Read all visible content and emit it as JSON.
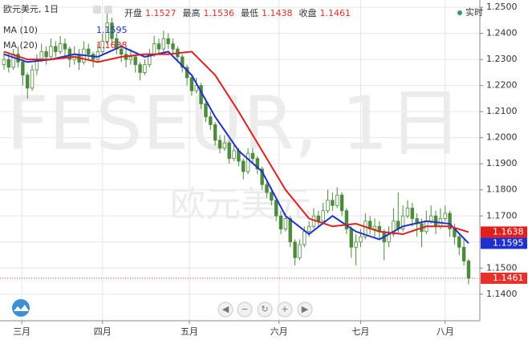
{
  "chart_data": {
    "type": "candlestick",
    "title": "欧元美元, 1日",
    "watermark": "FESEUR, 1日",
    "watermark_sub": "欧元美元",
    "realtime_label": "实时",
    "ohlc_labels": [
      "开盘",
      "最高",
      "最低",
      "收盘"
    ],
    "color": "#4b8b3b",
    "xlim": [
      -0.85,
      101.4
    ],
    "xticks": [
      {
        "value": 3.8,
        "label": "三月"
      },
      {
        "value": 21,
        "label": "四月"
      },
      {
        "value": 39.5,
        "label": "五月"
      },
      {
        "value": 58.6,
        "label": "六月"
      },
      {
        "value": 76,
        "label": "七月"
      },
      {
        "value": 94,
        "label": "八月"
      }
    ],
    "ylim": [
      1.1298,
      1.2528
    ],
    "yticks": [
      {
        "value": 1.14,
        "label": "1.1400"
      },
      {
        "value": 1.15,
        "label": "1.1500"
      },
      {
        "value": 1.16,
        "label": "1.1600"
      },
      {
        "value": 1.17,
        "label": "1.1700"
      },
      {
        "value": 1.18,
        "label": "1.1800"
      },
      {
        "value": 1.19,
        "label": "1.1900"
      },
      {
        "value": 1.2,
        "label": "1.2000"
      },
      {
        "value": 1.21,
        "label": "1.2100"
      },
      {
        "value": 1.22,
        "label": "1.2200"
      },
      {
        "value": 1.23,
        "label": "1.2300"
      },
      {
        "value": 1.24,
        "label": "1.2400"
      },
      {
        "value": 1.25,
        "label": "1.2500"
      }
    ],
    "grid": true,
    "candles": [
      [
        1.228,
        1.233,
        1.226,
        1.23
      ],
      [
        1.23,
        1.232,
        1.225,
        1.227
      ],
      [
        1.227,
        1.234,
        1.226,
        1.232
      ],
      [
        1.232,
        1.235,
        1.227,
        1.229
      ],
      [
        1.229,
        1.23,
        1.22,
        1.224
      ],
      [
        1.224,
        1.225,
        1.215,
        1.219
      ],
      [
        1.219,
        1.228,
        1.218,
        1.226
      ],
      [
        1.226,
        1.232,
        1.224,
        1.23
      ],
      [
        1.23,
        1.236,
        1.229,
        1.233
      ],
      [
        1.233,
        1.235,
        1.228,
        1.231
      ],
      [
        1.231,
        1.238,
        1.23,
        1.235
      ],
      [
        1.235,
        1.237,
        1.231,
        1.233
      ],
      [
        1.233,
        1.239,
        1.232,
        1.236
      ],
      [
        1.236,
        1.238,
        1.231,
        1.234
      ],
      [
        1.234,
        1.235,
        1.227,
        1.23
      ],
      [
        1.23,
        1.235,
        1.228,
        1.232
      ],
      [
        1.232,
        1.234,
        1.226,
        1.229
      ],
      [
        1.229,
        1.237,
        1.228,
        1.234
      ],
      [
        1.234,
        1.236,
        1.23,
        1.232
      ],
      [
        1.232,
        1.233,
        1.227,
        1.23
      ],
      [
        1.23,
        1.236,
        1.229,
        1.233
      ],
      [
        1.233,
        1.24,
        1.232,
        1.237
      ],
      [
        1.237,
        1.248,
        1.236,
        1.244
      ],
      [
        1.244,
        1.246,
        1.236,
        1.238
      ],
      [
        1.238,
        1.24,
        1.232,
        1.234
      ],
      [
        1.234,
        1.236,
        1.229,
        1.232
      ],
      [
        1.232,
        1.234,
        1.227,
        1.23
      ],
      [
        1.23,
        1.234,
        1.228,
        1.231
      ],
      [
        1.231,
        1.232,
        1.225,
        1.228
      ],
      [
        1.228,
        1.229,
        1.222,
        1.225
      ],
      [
        1.225,
        1.23,
        1.224,
        1.228
      ],
      [
        1.228,
        1.234,
        1.227,
        1.232
      ],
      [
        1.232,
        1.239,
        1.231,
        1.236
      ],
      [
        1.236,
        1.238,
        1.232,
        1.234
      ],
      [
        1.234,
        1.241,
        1.233,
        1.238
      ],
      [
        1.238,
        1.24,
        1.234,
        1.236
      ],
      [
        1.236,
        1.238,
        1.232,
        1.234
      ],
      [
        1.234,
        1.235,
        1.229,
        1.231
      ],
      [
        1.231,
        1.232,
        1.225,
        1.227
      ],
      [
        1.227,
        1.228,
        1.22,
        1.223
      ],
      [
        1.223,
        1.224,
        1.216,
        1.218
      ],
      [
        1.218,
        1.223,
        1.217,
        1.22
      ],
      [
        1.22,
        1.221,
        1.211,
        1.213
      ],
      [
        1.213,
        1.215,
        1.206,
        1.208
      ],
      [
        1.208,
        1.21,
        1.203,
        1.205
      ],
      [
        1.205,
        1.206,
        1.197,
        1.199
      ],
      [
        1.199,
        1.201,
        1.194,
        1.196
      ],
      [
        1.196,
        1.201,
        1.195,
        1.198
      ],
      [
        1.198,
        1.199,
        1.19,
        1.192
      ],
      [
        1.192,
        1.197,
        1.191,
        1.195
      ],
      [
        1.195,
        1.196,
        1.189,
        1.191
      ],
      [
        1.191,
        1.192,
        1.184,
        1.187
      ],
      [
        1.187,
        1.196,
        1.186,
        1.194
      ],
      [
        1.194,
        1.196,
        1.19,
        1.192
      ],
      [
        1.192,
        1.193,
        1.186,
        1.188
      ],
      [
        1.188,
        1.189,
        1.18,
        1.182
      ],
      [
        1.182,
        1.184,
        1.177,
        1.179
      ],
      [
        1.179,
        1.181,
        1.174,
        1.176
      ],
      [
        1.176,
        1.177,
        1.168,
        1.17
      ],
      [
        1.17,
        1.172,
        1.163,
        1.165
      ],
      [
        1.165,
        1.171,
        1.164,
        1.169
      ],
      [
        1.169,
        1.17,
        1.158,
        1.16
      ],
      [
        1.16,
        1.161,
        1.151,
        1.154
      ],
      [
        1.154,
        1.161,
        1.153,
        1.159
      ],
      [
        1.159,
        1.166,
        1.158,
        1.164
      ],
      [
        1.164,
        1.168,
        1.162,
        1.166
      ],
      [
        1.166,
        1.173,
        1.165,
        1.17
      ],
      [
        1.17,
        1.172,
        1.166,
        1.168
      ],
      [
        1.168,
        1.175,
        1.167,
        1.172
      ],
      [
        1.172,
        1.18,
        1.171,
        1.176
      ],
      [
        1.176,
        1.179,
        1.172,
        1.174
      ],
      [
        1.174,
        1.181,
        1.173,
        1.178
      ],
      [
        1.178,
        1.179,
        1.17,
        1.172
      ],
      [
        1.172,
        1.173,
        1.163,
        1.165
      ],
      [
        1.165,
        1.166,
        1.154,
        1.158
      ],
      [
        1.158,
        1.163,
        1.151,
        1.16
      ],
      [
        1.16,
        1.165,
        1.158,
        1.162
      ],
      [
        1.162,
        1.171,
        1.161,
        1.168
      ],
      [
        1.168,
        1.17,
        1.163,
        1.165
      ],
      [
        1.165,
        1.169,
        1.162,
        1.166
      ],
      [
        1.166,
        1.168,
        1.161,
        1.164
      ],
      [
        1.164,
        1.165,
        1.153,
        1.16
      ],
      [
        1.16,
        1.166,
        1.158,
        1.163
      ],
      [
        1.163,
        1.173,
        1.162,
        1.168
      ],
      [
        1.168,
        1.179,
        1.163,
        1.165
      ],
      [
        1.165,
        1.174,
        1.164,
        1.17
      ],
      [
        1.17,
        1.176,
        1.169,
        1.173
      ],
      [
        1.173,
        1.175,
        1.166,
        1.169
      ],
      [
        1.169,
        1.171,
        1.162,
        1.167
      ],
      [
        1.167,
        1.169,
        1.158,
        1.164
      ],
      [
        1.164,
        1.172,
        1.163,
        1.168
      ],
      [
        1.168,
        1.174,
        1.167,
        1.17
      ],
      [
        1.17,
        1.172,
        1.163,
        1.166
      ],
      [
        1.166,
        1.173,
        1.165,
        1.169
      ],
      [
        1.169,
        1.174,
        1.168,
        1.171
      ],
      [
        1.171,
        1.172,
        1.162,
        1.165
      ],
      [
        1.165,
        1.167,
        1.159,
        1.162
      ],
      [
        1.162,
        1.163,
        1.155,
        1.158
      ],
      [
        1.158,
        1.161,
        1.151,
        1.1527
      ],
      [
        1.1527,
        1.1536,
        1.1438,
        1.1461
      ]
    ],
    "last_color": "#e8312a",
    "series": [
      {
        "name": "MA (10)",
        "color": "#1f2fd0",
        "x": [
          0,
          5,
          10,
          15,
          20,
          25,
          30,
          35,
          40,
          45,
          50,
          55,
          60,
          65,
          70,
          75,
          80,
          85,
          90,
          95,
          99
        ],
        "values": [
          1.232,
          1.229,
          1.23,
          1.232,
          1.231,
          1.235,
          1.231,
          1.233,
          1.224,
          1.208,
          1.195,
          1.187,
          1.17,
          1.163,
          1.17,
          1.164,
          1.161,
          1.166,
          1.168,
          1.167,
          1.1595
        ]
      },
      {
        "name": "MA (20)",
        "color": "#e01f1f",
        "x": [
          0,
          5,
          10,
          15,
          20,
          25,
          30,
          35,
          40,
          45,
          50,
          55,
          60,
          65,
          70,
          75,
          80,
          85,
          90,
          95,
          99
        ],
        "values": [
          1.233,
          1.23,
          1.23,
          1.231,
          1.229,
          1.231,
          1.232,
          1.232,
          1.233,
          1.224,
          1.21,
          1.195,
          1.18,
          1.169,
          1.166,
          1.167,
          1.164,
          1.163,
          1.166,
          1.166,
          1.1638
        ]
      }
    ]
  }
}
